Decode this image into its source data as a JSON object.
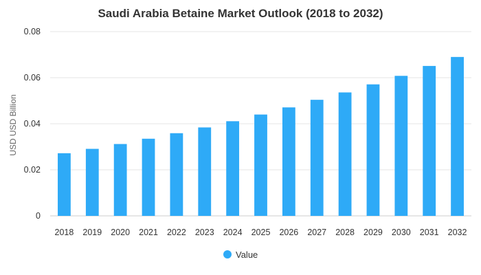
{
  "chart_data": {
    "type": "bar",
    "title": "Saudi Arabia Betaine Market Outlook (2018 to 2032)",
    "xlabel": "",
    "ylabel": "USD USD Billion",
    "categories": [
      "2018",
      "2019",
      "2020",
      "2021",
      "2022",
      "2023",
      "2024",
      "2025",
      "2026",
      "2027",
      "2028",
      "2029",
      "2030",
      "2031",
      "2032"
    ],
    "series": [
      {
        "name": "Value",
        "color": "#2eaaf7",
        "values": [
          0.0272,
          0.0291,
          0.0312,
          0.0335,
          0.0359,
          0.0384,
          0.0411,
          0.044,
          0.0471,
          0.0504,
          0.0536,
          0.0571,
          0.0608,
          0.0651,
          0.069
        ]
      }
    ],
    "ylim": [
      0,
      0.08
    ],
    "yticks": [
      "0",
      "0.02",
      "0.04",
      "0.06",
      "0.08"
    ],
    "ytick_values": [
      0,
      0.02,
      0.04,
      0.06,
      0.08
    ],
    "grid": true,
    "legend_position": "bottom-center"
  }
}
